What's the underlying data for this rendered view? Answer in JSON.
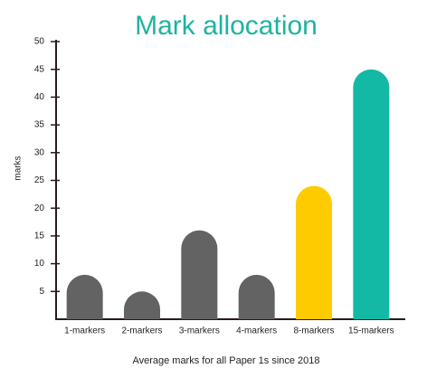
{
  "chart_data": {
    "type": "bar",
    "title": "Mark allocation",
    "y_label": "marks",
    "x_label": "Average marks for all Paper 1s since 2018",
    "categories": [
      "1-markers",
      "2-markers",
      "3-markers",
      "4-markers",
      "8-markers",
      "15-markers"
    ],
    "values": [
      8,
      5,
      16,
      8,
      24,
      45
    ],
    "colors": [
      "#636363",
      "#636363",
      "#636363",
      "#636363",
      "#fecb00",
      "#14b9a5"
    ],
    "ylim": [
      0,
      50
    ],
    "yticks": [
      5,
      10,
      15,
      20,
      25,
      30,
      35,
      40,
      45,
      50
    ],
    "grid": false
  }
}
